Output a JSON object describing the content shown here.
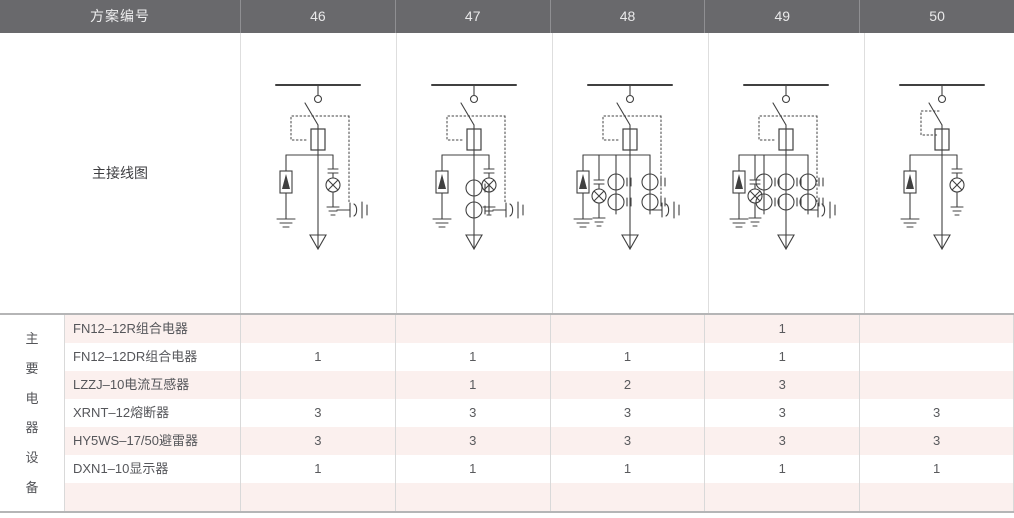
{
  "header": {
    "row_label": "方案编号",
    "schemes": [
      "46",
      "47",
      "48",
      "49",
      "50"
    ]
  },
  "diagram_section": {
    "row_label": "主接线图"
  },
  "equipment_section": {
    "side_label": "主要电器设备",
    "side_label_chars": [
      "主",
      "要",
      "电",
      "器",
      "设",
      "备"
    ],
    "rows": [
      {
        "name": "FN12–12R组合电器",
        "values": [
          "",
          "",
          "",
          "1",
          ""
        ]
      },
      {
        "name": "FN12–12DR组合电器",
        "values": [
          "1",
          "1",
          "1",
          "1",
          ""
        ]
      },
      {
        "name": "LZZJ–10电流互感器",
        "values": [
          "",
          "1",
          "2",
          "3",
          ""
        ]
      },
      {
        "name": "XRNT–12熔断器",
        "values": [
          "3",
          "3",
          "3",
          "3",
          "3"
        ]
      },
      {
        "name": "HY5WS–17/50避雷器",
        "values": [
          "3",
          "3",
          "3",
          "3",
          "3"
        ]
      },
      {
        "name": "DXN1–10显示器",
        "values": [
          "1",
          "1",
          "1",
          "1",
          "1"
        ]
      },
      {
        "name": "",
        "values": [
          "",
          "",
          "",
          "",
          ""
        ]
      }
    ]
  },
  "diagrams": [
    {
      "scheme": "46",
      "components": {
        "busbar": true,
        "load_switch": true,
        "fuse": true,
        "ct_count": 0,
        "arrester": true,
        "lamp_position": "right",
        "display_tail": true,
        "box_style": "around"
      }
    },
    {
      "scheme": "47",
      "components": {
        "busbar": true,
        "load_switch": true,
        "fuse": true,
        "ct_count": 1,
        "arrester": true,
        "lamp_position": "right",
        "display_tail": true,
        "box_style": "around"
      }
    },
    {
      "scheme": "48",
      "components": {
        "busbar": true,
        "load_switch": true,
        "fuse": true,
        "ct_count": 2,
        "arrester": true,
        "lamp_position": "left",
        "display_tail": true,
        "box_style": "around"
      }
    },
    {
      "scheme": "49",
      "components": {
        "busbar": true,
        "load_switch": true,
        "fuse": true,
        "ct_count": 3,
        "arrester": true,
        "lamp_position": "left",
        "display_tail": true,
        "box_style": "around"
      }
    },
    {
      "scheme": "50",
      "components": {
        "busbar": true,
        "load_switch": true,
        "fuse": true,
        "ct_count": 0,
        "arrester": true,
        "lamp_position": "right",
        "display_tail": false,
        "box_style": "left"
      }
    }
  ],
  "colors": {
    "header_bg": "#69696c",
    "header_text": "#e9e9ea",
    "stripe_pink": "#fbf0ee",
    "grid_line": "#d9d9d9",
    "section_border": "#b5b5b6",
    "body_text": "#55565a",
    "diagram_stroke": "#404040"
  }
}
